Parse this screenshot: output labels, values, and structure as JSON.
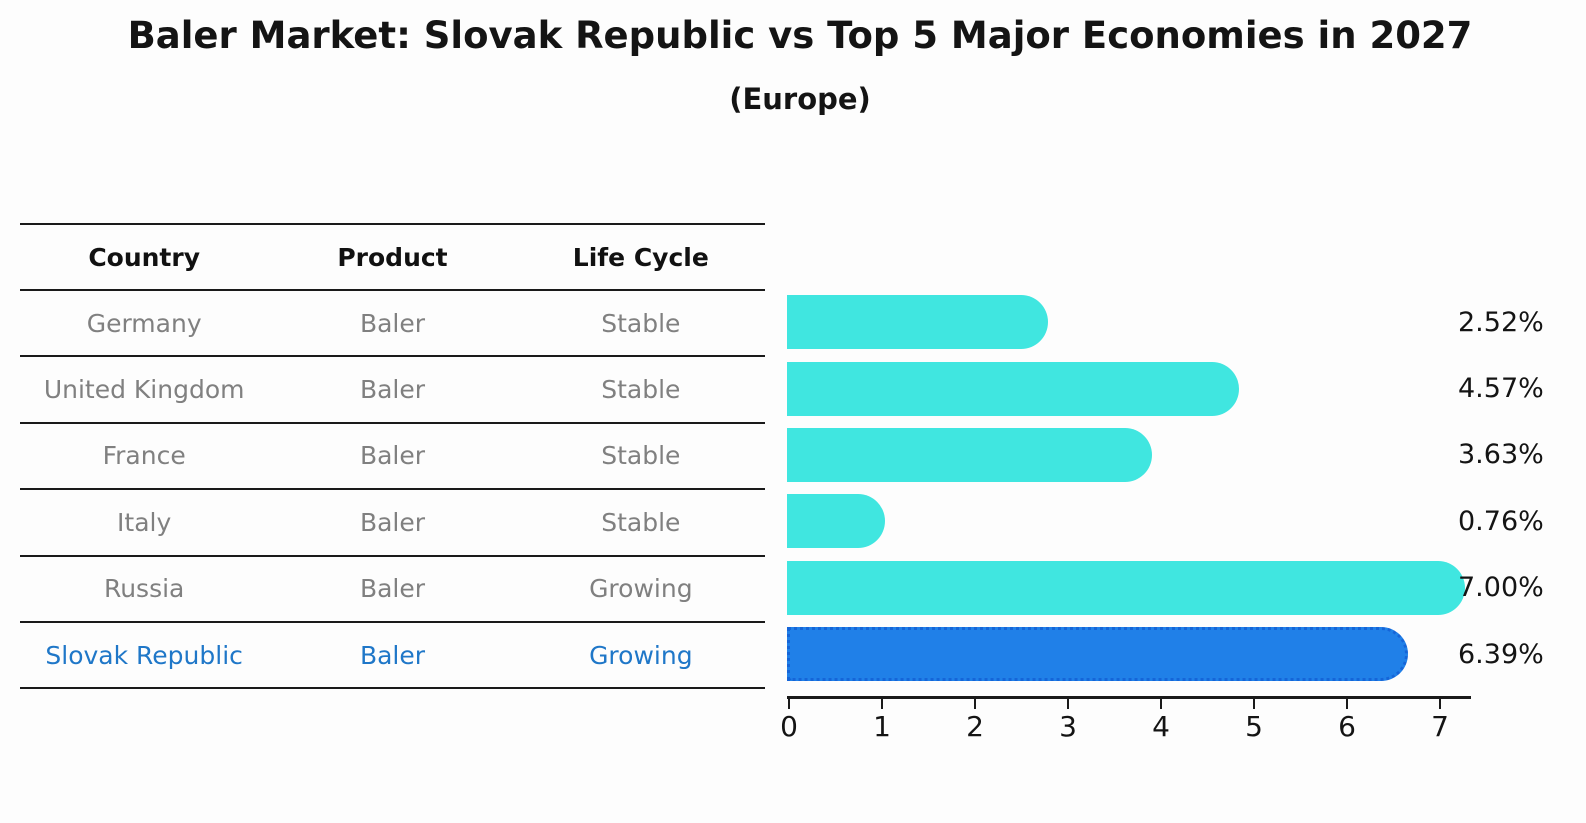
{
  "header": {
    "title": "Baler Market: Slovak Republic vs Top 5 Major Economies in 2027",
    "subtitle": "(Europe)"
  },
  "table": {
    "headers": [
      "Country",
      "Product",
      "Life Cycle"
    ],
    "rows": [
      {
        "country": "Germany",
        "product": "Baler",
        "life_cycle": "Stable"
      },
      {
        "country": "United Kingdom",
        "product": "Baler",
        "life_cycle": "Stable"
      },
      {
        "country": "France",
        "product": "Baler",
        "life_cycle": "Stable"
      },
      {
        "country": "Italy",
        "product": "Baler",
        "life_cycle": "Stable"
      },
      {
        "country": "Russia",
        "product": "Baler",
        "life_cycle": "Growing"
      },
      {
        "country": "Slovak Republic",
        "product": "Baler",
        "life_cycle": "Growing"
      }
    ],
    "highlight_row_index": 5
  },
  "chart_data": {
    "type": "bar",
    "orientation": "horizontal",
    "title": "Baler Market: Slovak Republic vs Top 5 Major Economies in 2027 (Europe)",
    "categories": [
      "Germany",
      "United Kingdom",
      "France",
      "Italy",
      "Russia",
      "Slovak Republic"
    ],
    "values": [
      2.52,
      4.57,
      3.63,
      0.76,
      7.0,
      6.39
    ],
    "value_labels": [
      "2.52%",
      "4.57%",
      "3.63%",
      "0.76%",
      "7.00%",
      "6.39%"
    ],
    "x_tick_labels": [
      "0",
      "1",
      "2",
      "3",
      "4",
      "5",
      "6",
      "7"
    ],
    "xlim": [
      0,
      7.35
    ],
    "grid": false,
    "legend": "none",
    "bar_color": "#40E6E0",
    "highlight_color": "#2080E8",
    "highlight_border_color": "#1565D8",
    "highlight_index": 5
  },
  "colors": {
    "background": "#fdfdfd",
    "title_text": "#141414",
    "table_header_text": "#111111",
    "table_row_text": "#808080",
    "highlight_text": "#1F77C8",
    "line": "#1a1a1a"
  }
}
